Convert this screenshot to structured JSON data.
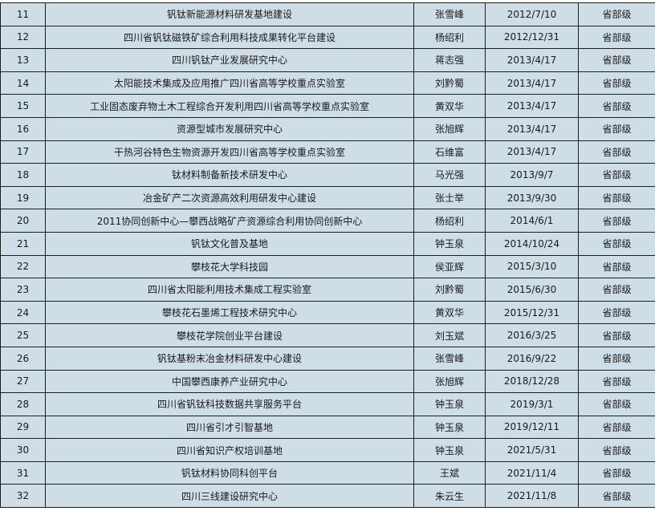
{
  "table": {
    "rows": [
      {
        "no": "11",
        "name": "钒钛新能源材料研发基地建设",
        "person": "张雪峰",
        "date": "2012/7/10",
        "level": "省部级"
      },
      {
        "no": "12",
        "name": "四川省钒钛磁铁矿综合利用科技成果转化平台建设",
        "person": "杨绍利",
        "date": "2012/12/31",
        "level": "省部级"
      },
      {
        "no": "13",
        "name": "四川钒钛产业发展研究中心",
        "person": "蒋志强",
        "date": "2013/4/17",
        "level": "省部级"
      },
      {
        "no": "14",
        "name": "太阳能技术集成及应用推广四川省高等学校重点实验室",
        "person": "刘黔蜀",
        "date": "2013/4/17",
        "level": "省部级"
      },
      {
        "no": "15",
        "name": "工业固态废弃物土木工程综合开发利用四川省高等学校重点实验室",
        "person": "黄双华",
        "date": "2013/4/17",
        "level": "省部级"
      },
      {
        "no": "16",
        "name": "资源型城市发展研究中心",
        "person": "张旭辉",
        "date": "2013/4/17",
        "level": "省部级"
      },
      {
        "no": "17",
        "name": "干热河谷特色生物资源开发四川省高等学校重点实验室",
        "person": "石维富",
        "date": "2013/4/17",
        "level": "省部级"
      },
      {
        "no": "18",
        "name": "钛材料制备新技术研发中心",
        "person": "马光强",
        "date": "2013/9/7",
        "level": "省部级"
      },
      {
        "no": "19",
        "name": "冶金矿产二次资源高效利用研发中心建设",
        "person": "张士举",
        "date": "2013/9/30",
        "level": "省部级"
      },
      {
        "no": "20",
        "name": "2011协同创新中心—攀西战略矿产资源综合利用协同创新中心",
        "person": "杨绍利",
        "date": "2014/6/1",
        "level": "省部级"
      },
      {
        "no": "21",
        "name": "钒钛文化普及基地",
        "person": "钟玉泉",
        "date": "2014/10/24",
        "level": "省部级"
      },
      {
        "no": "22",
        "name": "攀枝花大学科技园",
        "person": "侯亚辉",
        "date": "2015/3/10",
        "level": "省部级"
      },
      {
        "no": "23",
        "name": "四川省太阳能利用技术集成工程实验室",
        "person": "刘黔蜀",
        "date": "2015/6/30",
        "level": "省部级"
      },
      {
        "no": "24",
        "name": "攀枝花石墨烯工程技术研究中心",
        "person": "黄双华",
        "date": "2015/12/31",
        "level": "省部级"
      },
      {
        "no": "25",
        "name": "攀枝花学院创业平台建设",
        "person": "刘玉斌",
        "date": "2016/3/25",
        "level": "省部级"
      },
      {
        "no": "26",
        "name": "钒钛基粉末冶金材料研发中心建设",
        "person": "张雪峰",
        "date": "2016/9/22",
        "level": "省部级"
      },
      {
        "no": "27",
        "name": "中国攀西康养产业研究中心",
        "person": "张旭辉",
        "date": "2018/12/28",
        "level": "省部级"
      },
      {
        "no": "28",
        "name": "四川省钒钛科技数据共享服务平台",
        "person": "钟玉泉",
        "date": "2019/3/1",
        "level": "省部级"
      },
      {
        "no": "29",
        "name": "四川省引才引智基地",
        "person": "钟玉泉",
        "date": "2019/12/11",
        "level": "省部级"
      },
      {
        "no": "30",
        "name": "四川省知识产权培训基地",
        "person": "钟玉泉",
        "date": "2021/5/31",
        "level": "省部级"
      },
      {
        "no": "31",
        "name": "钒钛材料协同科创平台",
        "person": "王斌",
        "date": "2021/11/4",
        "level": "省部级"
      },
      {
        "no": "32",
        "name": "四川三线建设研究中心",
        "person": "朱云生",
        "date": "2021/11/8",
        "level": "省部级"
      }
    ]
  }
}
